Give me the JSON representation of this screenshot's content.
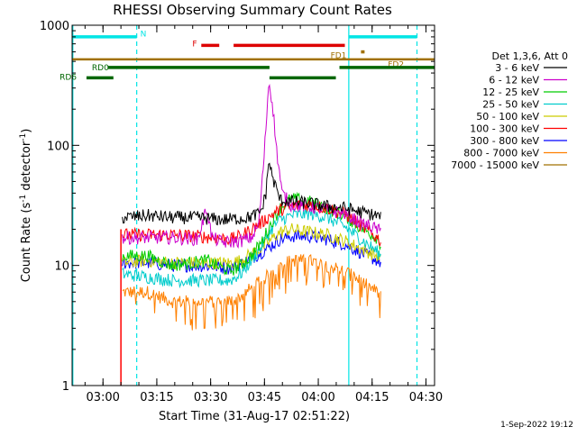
{
  "chart_data": {
    "type": "line",
    "title": "RHESSI Observing Summary Count Rates",
    "xlabel": "Start Time (31-Aug-17 02:51:22)",
    "ylabel_prefix": "Count Rate (s",
    "ylabel_exp": "-1",
    "ylabel_suffix": " detector",
    "ylabel_end": ")",
    "yscale": "log",
    "ylim": [
      1,
      1000
    ],
    "xlim_min": [
      0,
      101
    ],
    "x_unit": "minutes since 02:51:22",
    "xticks": [
      {
        "label": "03:00",
        "t": 8.6
      },
      {
        "label": "03:15",
        "t": 23.6
      },
      {
        "label": "03:30",
        "t": 38.6
      },
      {
        "label": "03:45",
        "t": 53.6
      },
      {
        "label": "04:00",
        "t": 68.6
      },
      {
        "label": "04:15",
        "t": 83.6
      },
      {
        "label": "04:30",
        "t": 98.6
      }
    ],
    "yticks": [
      {
        "label": "1",
        "v": 1
      },
      {
        "label": "10",
        "v": 10
      },
      {
        "label": "100",
        "v": 100
      },
      {
        "label": "1000",
        "v": 1000
      }
    ],
    "legend_title": "Det 1,3,6, Att 0",
    "series": [
      {
        "name": "3 - 6 keV",
        "color": "#000000",
        "points": [
          [
            14,
            25
          ],
          [
            21,
            26
          ],
          [
            28,
            25
          ],
          [
            35,
            25
          ],
          [
            42,
            24
          ],
          [
            49,
            25
          ],
          [
            52,
            27
          ],
          [
            53,
            30
          ],
          [
            54,
            40
          ],
          [
            54.8,
            75
          ],
          [
            56,
            52
          ],
          [
            58,
            35
          ],
          [
            61,
            34
          ],
          [
            66,
            33
          ],
          [
            71,
            31
          ],
          [
            76,
            30
          ],
          [
            80,
            28
          ],
          [
            85,
            26
          ],
          [
            86,
            25
          ]
        ]
      },
      {
        "name": "6 - 12 keV",
        "color": "#cc00cc",
        "points": [
          [
            14,
            17
          ],
          [
            21,
            17
          ],
          [
            28,
            17
          ],
          [
            35,
            16.5
          ],
          [
            37.5,
            30
          ],
          [
            39,
            17
          ],
          [
            42,
            15.5
          ],
          [
            47,
            16
          ],
          [
            50,
            17
          ],
          [
            52,
            22
          ],
          [
            53.5,
            80
          ],
          [
            54.8,
            340
          ],
          [
            55.8,
            230
          ],
          [
            57,
            90
          ],
          [
            58.5,
            40
          ],
          [
            61,
            32
          ],
          [
            66,
            31
          ],
          [
            71,
            29
          ],
          [
            76,
            27
          ],
          [
            80,
            23
          ],
          [
            85,
            20
          ],
          [
            86,
            19
          ]
        ]
      },
      {
        "name": "12 - 25 keV",
        "color": "#00cc00",
        "points": [
          [
            14,
            12
          ],
          [
            21,
            12
          ],
          [
            28,
            10
          ],
          [
            33,
            10.5
          ],
          [
            38,
            11
          ],
          [
            40,
            10
          ],
          [
            44,
            9
          ],
          [
            47,
            10
          ],
          [
            50,
            12
          ],
          [
            53,
            16
          ],
          [
            56,
            24
          ],
          [
            58,
            30
          ],
          [
            61,
            36
          ],
          [
            66,
            34
          ],
          [
            71,
            30
          ],
          [
            76,
            26
          ],
          [
            80,
            21
          ],
          [
            85,
            17
          ],
          [
            86,
            15
          ]
        ]
      },
      {
        "name": "25 - 50 keV",
        "color": "#00cccc",
        "points": [
          [
            14,
            8.5
          ],
          [
            21,
            8
          ],
          [
            28,
            7.5
          ],
          [
            35,
            7.5
          ],
          [
            40,
            7.5
          ],
          [
            44,
            7.5
          ],
          [
            47,
            8.5
          ],
          [
            50,
            11
          ],
          [
            53,
            15
          ],
          [
            56,
            21
          ],
          [
            58,
            24
          ],
          [
            61,
            26
          ],
          [
            66,
            27
          ],
          [
            71,
            25
          ],
          [
            76,
            21
          ],
          [
            80,
            17
          ],
          [
            85,
            13
          ],
          [
            86,
            12
          ]
        ]
      },
      {
        "name": "50 - 100 keV",
        "color": "#cccc00",
        "points": [
          [
            14,
            10.5
          ],
          [
            21,
            11
          ],
          [
            28,
            10.5
          ],
          [
            35,
            10.5
          ],
          [
            40,
            10.5
          ],
          [
            44,
            10.5
          ],
          [
            47,
            11
          ],
          [
            50,
            12.5
          ],
          [
            53,
            14
          ],
          [
            56,
            17
          ],
          [
            58,
            19
          ],
          [
            61,
            20
          ],
          [
            66,
            19
          ],
          [
            71,
            18
          ],
          [
            76,
            16
          ],
          [
            80,
            14
          ],
          [
            85,
            12
          ],
          [
            86,
            11.5
          ]
        ]
      },
      {
        "name": "100 - 300 keV",
        "color": "#ff0000",
        "points": [
          [
            14,
            18
          ],
          [
            21,
            18
          ],
          [
            28,
            18
          ],
          [
            35,
            17.5
          ],
          [
            40,
            17
          ],
          [
            44,
            16.5
          ],
          [
            47,
            17.5
          ],
          [
            50,
            20
          ],
          [
            53,
            23
          ],
          [
            56,
            27
          ],
          [
            58,
            29
          ],
          [
            61,
            31
          ],
          [
            66,
            32
          ],
          [
            71,
            30
          ],
          [
            76,
            27
          ],
          [
            80,
            22
          ],
          [
            85,
            17
          ],
          [
            86,
            16
          ]
        ]
      },
      {
        "name": "300 - 800 keV",
        "color": "#0000ff",
        "points": [
          [
            14,
            10.5
          ],
          [
            21,
            10.5
          ],
          [
            28,
            10
          ],
          [
            35,
            10
          ],
          [
            40,
            9.8
          ],
          [
            44,
            9.5
          ],
          [
            47,
            10.2
          ],
          [
            50,
            11.5
          ],
          [
            53,
            13
          ],
          [
            56,
            15
          ],
          [
            58,
            16.5
          ],
          [
            61,
            17.5
          ],
          [
            66,
            17.5
          ],
          [
            71,
            16.5
          ],
          [
            76,
            15
          ],
          [
            80,
            13
          ],
          [
            85,
            11
          ],
          [
            86,
            10.5
          ]
        ]
      },
      {
        "name": "800 - 7000 keV",
        "color": "#ff8000",
        "points": [
          [
            14,
            6
          ],
          [
            21,
            6
          ],
          [
            28,
            5
          ],
          [
            35,
            5
          ],
          [
            40,
            5
          ],
          [
            44,
            5
          ],
          [
            47,
            5.5
          ],
          [
            50,
            6.5
          ],
          [
            53,
            7.5
          ],
          [
            56,
            9
          ],
          [
            58,
            10
          ],
          [
            61,
            11
          ],
          [
            66,
            11
          ],
          [
            71,
            10
          ],
          [
            76,
            9
          ],
          [
            80,
            7.5
          ],
          [
            85,
            6
          ],
          [
            86,
            5.5
          ]
        ]
      },
      {
        "name": "7000 - 15000 keV",
        "color": "#a07000",
        "points": []
      }
    ],
    "drop": {
      "t": 13.6,
      "from": 20,
      "to": 1,
      "color": "#ff0000"
    },
    "attenuator_line": {
      "v": 520,
      "color": "#a07000"
    },
    "vertical_lines": [
      {
        "t": 0.2,
        "style": "solid",
        "color": "#00e5e5"
      },
      {
        "t": 18.0,
        "style": "dashed",
        "color": "#00e5e5"
      },
      {
        "t": 77.1,
        "style": "solid",
        "color": "#00e5e5"
      },
      {
        "t": 96.1,
        "style": "dashed",
        "color": "#00e5e5"
      }
    ],
    "flag_bars": [
      {
        "label": "N",
        "color": "#00e5e5",
        "y": 800,
        "segments": [
          [
            0.2,
            18.0
          ],
          [
            77.1,
            96.1
          ]
        ],
        "label_t": 19,
        "label_y": 850
      },
      {
        "label": "F",
        "color": "#dd0000",
        "y": 680,
        "segments": [
          [
            36,
            41
          ],
          [
            45,
            76
          ]
        ],
        "label_t": 33.5,
        "label_y": 700
      },
      {
        "label": "FD1",
        "color": "#a07000",
        "y": 600,
        "segments": [
          [
            80.5,
            81.5
          ]
        ],
        "label_t": 72,
        "label_y": 560
      },
      {
        "label": "FD2",
        "color": "#a07000",
        "y": 490,
        "segments": [],
        "label_t": 88,
        "label_y": 470
      },
      {
        "label": "RD0",
        "color": "#006600",
        "y": 445,
        "segments": [
          [
            10,
            55
          ],
          [
            74.5,
            101
          ]
        ],
        "label_t": 5.5,
        "label_y": 445
      },
      {
        "label": "RD6",
        "color": "#006600",
        "y": 365,
        "segments": [
          [
            4,
            11.5
          ],
          [
            55,
            73.5
          ]
        ],
        "label_t": -3.5,
        "label_y": 370
      }
    ],
    "legend_placement": "right"
  },
  "footer": {
    "timestamp": "1-Sep-2022 19:12"
  }
}
